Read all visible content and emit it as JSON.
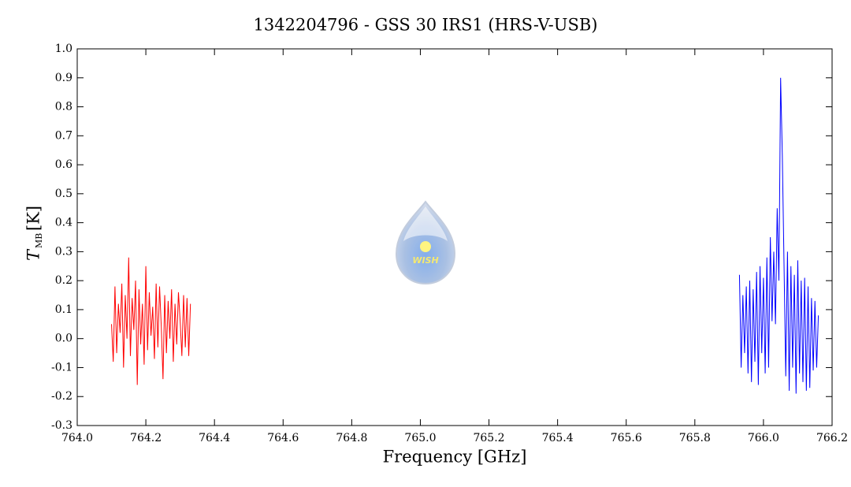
{
  "chart_data": {
    "type": "line",
    "title": "1342204796 - GSS 30 IRS1 (HRS-V-USB)",
    "xlabel": "Frequency [GHz]",
    "ylabel": "T",
    "ylabel_sub": "MB",
    "ylabel_unit": "[K]",
    "watermark": "WISH",
    "xlim": [
      764.0,
      766.2
    ],
    "ylim": [
      -0.3,
      1.0
    ],
    "xticks": [
      {
        "value": 764.0,
        "label": "764.0"
      },
      764.2,
      764.4,
      764.6,
      764.8,
      {
        "value": 765.0,
        "label": "765.0"
      },
      765.2,
      765.4,
      765.6,
      765.8,
      {
        "value": 766.0,
        "label": "766.0"
      },
      766.2
    ],
    "yticks": [
      -0.3,
      -0.2,
      -0.1,
      {
        "value": 0.0,
        "label": "0.0"
      },
      0.1,
      0.2,
      0.3,
      0.4,
      0.5,
      0.6,
      0.7,
      0.8,
      0.9,
      {
        "value": 1.0,
        "label": "1.0"
      }
    ],
    "series": [
      {
        "color": "#ff0000",
        "x": [
          764.1,
          764.105,
          764.11,
          764.115,
          764.12,
          764.125,
          764.13,
          764.135,
          764.14,
          764.145,
          764.15,
          764.155,
          764.16,
          764.165,
          764.17,
          764.175,
          764.18,
          764.185,
          764.19,
          764.195,
          764.2,
          764.205,
          764.21,
          764.215,
          764.22,
          764.225,
          764.23,
          764.235,
          764.24,
          764.245,
          764.25,
          764.255,
          764.26,
          764.265,
          764.27,
          764.275,
          764.28,
          764.285,
          764.29,
          764.295,
          764.3,
          764.305,
          764.31,
          764.315,
          764.32,
          764.325,
          764.33
        ],
        "values": [
          0.05,
          -0.08,
          0.18,
          -0.05,
          0.12,
          0.02,
          0.19,
          -0.1,
          0.15,
          0.0,
          0.28,
          -0.06,
          0.14,
          0.03,
          0.2,
          -0.16,
          0.17,
          -0.02,
          0.12,
          -0.09,
          0.25,
          -0.04,
          0.16,
          0.01,
          0.11,
          -0.07,
          0.19,
          -0.03,
          0.18,
          0.04,
          -0.14,
          0.15,
          -0.05,
          0.13,
          0.0,
          0.17,
          -0.08,
          0.12,
          -0.02,
          0.16,
          0.06,
          -0.06,
          0.15,
          -0.03,
          0.14,
          -0.06,
          0.12
        ]
      },
      {
        "color": "#0000ff",
        "x": [
          765.93,
          765.935,
          765.94,
          765.945,
          765.95,
          765.955,
          765.96,
          765.965,
          765.97,
          765.975,
          765.98,
          765.985,
          765.99,
          765.995,
          766.0,
          766.005,
          766.01,
          766.015,
          766.02,
          766.025,
          766.03,
          766.035,
          766.04,
          766.045,
          766.05,
          766.055,
          766.06,
          766.065,
          766.07,
          766.075,
          766.08,
          766.085,
          766.09,
          766.095,
          766.1,
          766.105,
          766.11,
          766.115,
          766.12,
          766.125,
          766.13,
          766.135,
          766.14,
          766.145,
          766.15,
          766.155,
          766.16
        ],
        "values": [
          0.22,
          -0.1,
          0.15,
          -0.05,
          0.18,
          -0.12,
          0.2,
          -0.15,
          0.17,
          -0.08,
          0.23,
          -0.16,
          0.25,
          -0.05,
          0.21,
          -0.12,
          0.28,
          -0.1,
          0.35,
          0.06,
          0.3,
          0.05,
          0.45,
          0.2,
          0.9,
          0.63,
          0.25,
          -0.13,
          0.3,
          -0.18,
          0.25,
          -0.1,
          0.22,
          -0.19,
          0.27,
          -0.12,
          0.2,
          -0.15,
          0.21,
          -0.18,
          0.18,
          -0.17,
          0.14,
          -0.11,
          0.13,
          -0.1,
          0.08
        ]
      }
    ]
  }
}
